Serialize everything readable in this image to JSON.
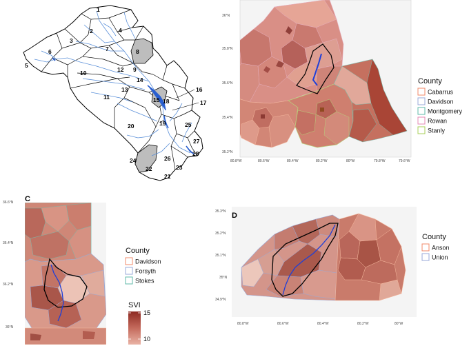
{
  "panel_b": {
    "label": "",
    "lat_ticks": [
      "36°N",
      "35.8°N",
      "35.6°N",
      "35.4°N",
      "35.2°N"
    ],
    "lon_ticks": [
      "80.8°W",
      "80.6°W",
      "80.4°W",
      "80.2°W",
      "80°W",
      "79.8°W",
      "79.6°W"
    ],
    "legend": {
      "title": "County",
      "items": [
        {
          "name": "Cabarrus",
          "color": "#f08a6a"
        },
        {
          "name": "Davidson",
          "color": "#9aaad8"
        },
        {
          "name": "Montgomery",
          "color": "#5fb8a8"
        },
        {
          "name": "Rowan",
          "color": "#e58ab4"
        },
        {
          "name": "Stanly",
          "color": "#a8cf5a"
        }
      ]
    }
  },
  "panel_c": {
    "label": "C",
    "lat_ticks": [
      "36.6°N",
      "36.4°N",
      "36.2°N",
      "36°N"
    ],
    "legend": {
      "title": "County",
      "items": [
        {
          "name": "Davidson",
          "color": "#f08a6a"
        },
        {
          "name": "Forsyth",
          "color": "#9aaad8"
        },
        {
          "name": "Stokes",
          "color": "#5fb8a8"
        }
      ]
    },
    "svi": {
      "title": "SVI",
      "labels": [
        "15",
        "10"
      ]
    }
  },
  "panel_d": {
    "label": "D",
    "lat_ticks": [
      "35.3°N",
      "35.2°N",
      "35.1°N",
      "35°N",
      "34.9°N"
    ],
    "lon_ticks": [
      "80.8°W",
      "80.6°W",
      "80.4°W",
      "80.2°W",
      "80°W"
    ],
    "legend": {
      "title": "County",
      "items": [
        {
          "name": "Anson",
          "color": "#f08a6a"
        },
        {
          "name": "Union",
          "color": "#9aaad8"
        }
      ]
    }
  },
  "watershed_labels": [
    "1",
    "2",
    "3",
    "4",
    "5",
    "6",
    "7",
    "8",
    "9",
    "10",
    "11",
    "12",
    "13",
    "14",
    "15",
    "16",
    "17",
    "18",
    "19",
    "20",
    "21",
    "22",
    "23",
    "24",
    "25",
    "26",
    "27",
    "28"
  ]
}
